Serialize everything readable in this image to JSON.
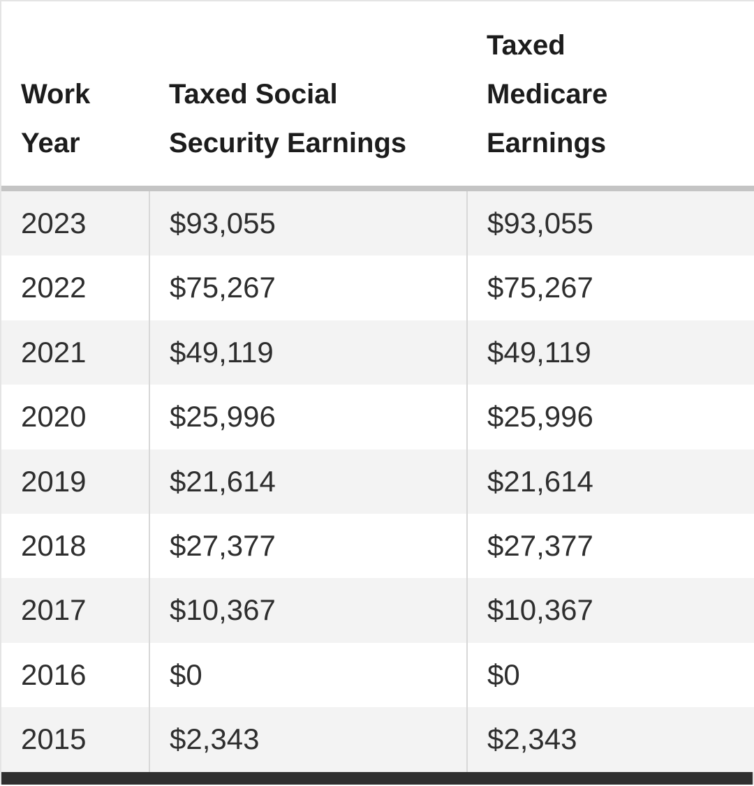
{
  "table": {
    "columns": [
      "Work Year",
      "Taxed Social Security Earnings",
      "Taxed Medicare Earnings"
    ],
    "rows": [
      {
        "year": "2023",
        "social_security": "$93,055",
        "medicare": "$93,055"
      },
      {
        "year": "2022",
        "social_security": "$75,267",
        "medicare": "$75,267"
      },
      {
        "year": "2021",
        "social_security": "$49,119",
        "medicare": "$49,119"
      },
      {
        "year": "2020",
        "social_security": "$25,996",
        "medicare": "$25,996"
      },
      {
        "year": "2019",
        "social_security": "$21,614",
        "medicare": "$21,614"
      },
      {
        "year": "2018",
        "social_security": "$27,377",
        "medicare": "$27,377"
      },
      {
        "year": "2017",
        "social_security": "$10,367",
        "medicare": "$10,367"
      },
      {
        "year": "2016",
        "social_security": "$0",
        "medicare": "$0"
      },
      {
        "year": "2015",
        "social_security": "$2,343",
        "medicare": "$2,343"
      }
    ]
  }
}
